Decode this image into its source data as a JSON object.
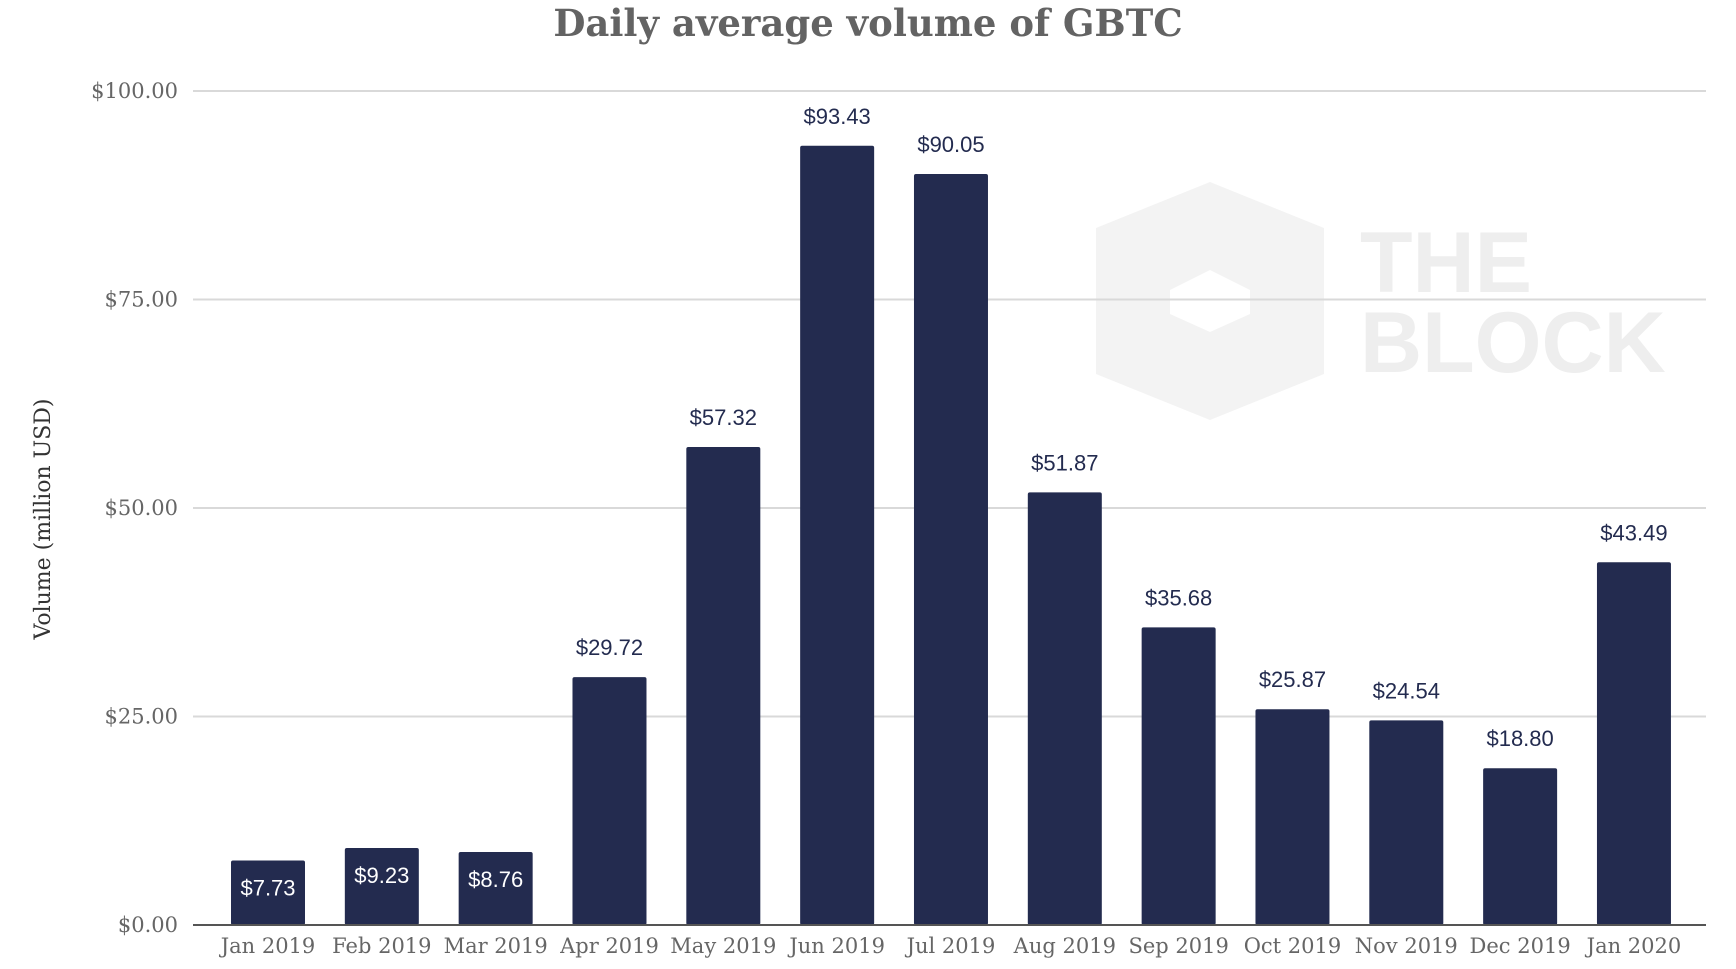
{
  "chart_data": {
    "type": "bar",
    "title": "Daily average volume of GBTC",
    "xlabel": "",
    "ylabel": "Volume (million USD)",
    "categories": [
      "Jan 2019",
      "Feb 2019",
      "Mar 2019",
      "Apr 2019",
      "May 2019",
      "Jun 2019",
      "Jul 2019",
      "Aug 2019",
      "Sep 2019",
      "Oct 2019",
      "Nov 2019",
      "Dec 2019",
      "Jan 2020"
    ],
    "values": [
      7.73,
      9.23,
      8.76,
      29.72,
      57.32,
      93.43,
      90.05,
      51.87,
      35.68,
      25.87,
      24.54,
      18.8,
      43.49
    ],
    "data_labels": [
      "$7.73",
      "$9.23",
      "$8.76",
      "$29.72",
      "$57.32",
      "$93.43",
      "$90.05",
      "$51.87",
      "$35.68",
      "$25.87",
      "$24.54",
      "$18.80",
      "$43.49"
    ],
    "ylim": [
      0,
      100
    ],
    "yticks": [
      0,
      25,
      50,
      75,
      100
    ],
    "ytick_labels": [
      "$0.00",
      "$25.00",
      "$50.00",
      "$75.00",
      "$100.00"
    ],
    "grid": true,
    "legend": "none",
    "bar_color": "#232b4f",
    "watermark": {
      "icon": "cube-logo-icon",
      "lines": [
        "THE",
        "BLOCK"
      ]
    }
  },
  "colors": {
    "bar": "#232b4f",
    "label_outside": "#232b4f",
    "label_inside": "#ffffff",
    "grid": "#d9d9d9",
    "axis": "#555555",
    "title": "#636363",
    "watermark": "#eeeeee"
  }
}
